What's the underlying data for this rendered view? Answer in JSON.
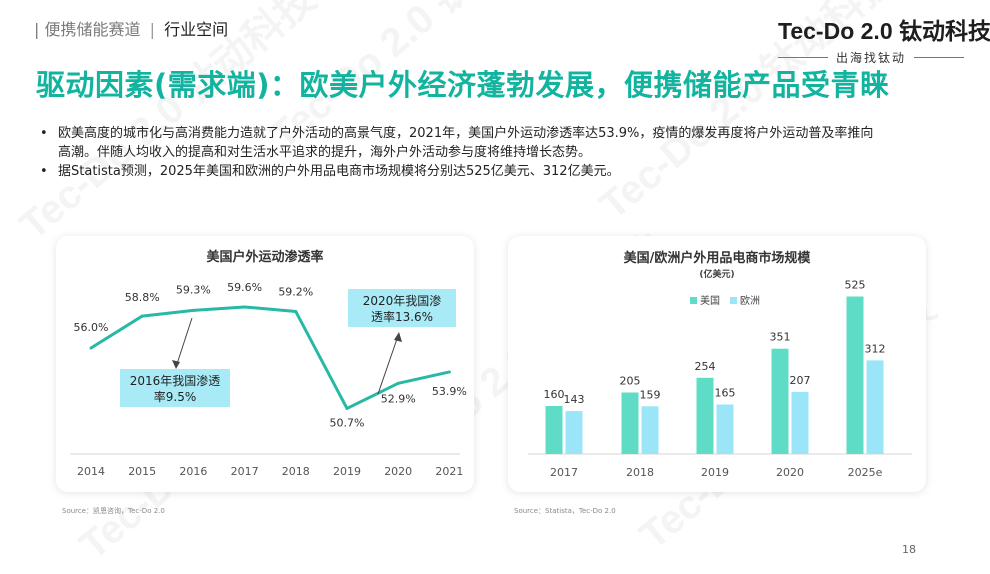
{
  "header": {
    "breadcrumb_prefix": "|",
    "breadcrumb_section": "便携储能赛道",
    "breadcrumb_separator": "|",
    "breadcrumb_current": "行业空间",
    "brand_name": "Tec-Do 2.0 钛动科技",
    "brand_slogan": "出海找钛动"
  },
  "headline": "驱动因素(需求端)：欧美户外经济蓬勃发展，便携储能产品受青睐",
  "bullets": [
    "欧美高度的城市化与高消费能力造就了户外活动的高景气度，2021年，美国户外运动渗透率达53.9%，疫情的爆发再度将户外运动普及率推向高潮。伴随人均收入的提高和对生活水平追求的提升，海外户外活动参与度将维持增长态势。",
    "据Statista预测，2025年美国和欧洲的户外用品电商市场规模将分别达525亿美元、312亿美元。"
  ],
  "colors": {
    "accent": "#12b4a0",
    "line": "#28b8a6",
    "us_bar": "#5fdcc6",
    "eu_bar": "#9ae6f8",
    "annotation_fill": "#a8ebf7"
  },
  "chart_data": [
    {
      "type": "line",
      "title": "美国户外运动渗透率",
      "categories": [
        "2014",
        "2015",
        "2016",
        "2017",
        "2018",
        "2019",
        "2020",
        "2021"
      ],
      "values": [
        56.0,
        58.8,
        59.3,
        59.6,
        59.2,
        50.7,
        52.9,
        53.9
      ],
      "value_labels": [
        "56.0%",
        "58.8%",
        "59.3%",
        "59.6%",
        "59.2%",
        "50.7%",
        "52.9%",
        "53.9%"
      ],
      "annotations": [
        {
          "lines": [
            "2016年我国渗透",
            "率9.5%"
          ],
          "points_to": "2016"
        },
        {
          "lines": [
            "2020年我国渗",
            "透率13.6%"
          ],
          "points_to": "2020"
        }
      ],
      "grid": false,
      "source": "Source：凯恩咨询，Tec-Do 2.0"
    },
    {
      "type": "bar",
      "title": "美国/欧洲户外用品电商市场规模",
      "subtitle": "(亿美元)",
      "categories": [
        "2017",
        "2018",
        "2019",
        "2020",
        "2025e"
      ],
      "series": [
        {
          "name": "美国",
          "values": [
            160,
            205,
            254,
            351,
            525
          ]
        },
        {
          "name": "欧洲",
          "values": [
            143,
            159,
            165,
            207,
            312
          ]
        }
      ],
      "legend_position": "top",
      "grid": false,
      "source": "Source：Statista，Tec-Do 2.0"
    }
  ],
  "page_number": "18",
  "watermark": "Tec-Do 2.0 钛动科技"
}
